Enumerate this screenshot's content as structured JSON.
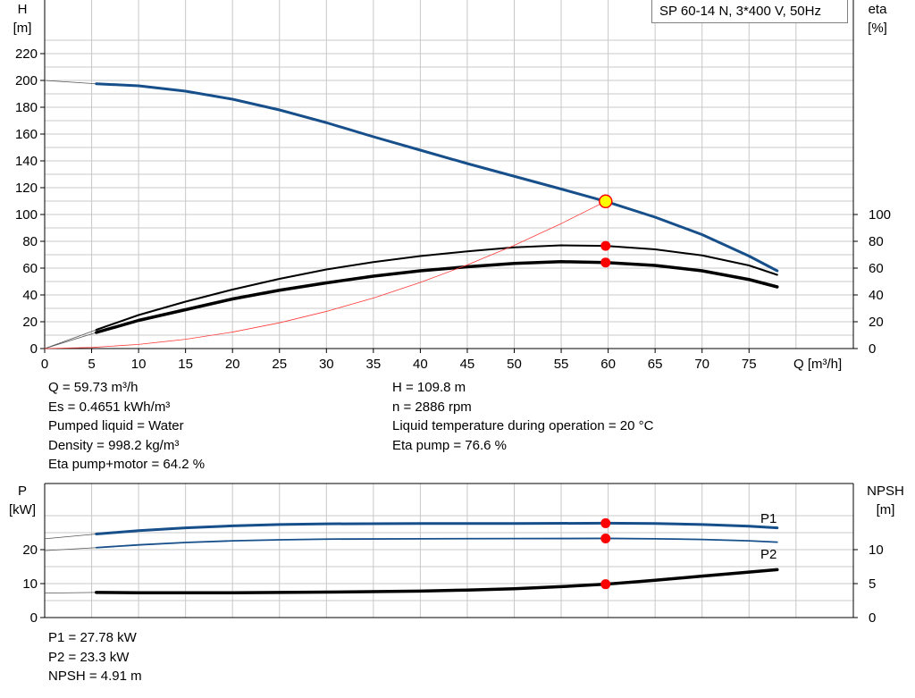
{
  "title": "SP 60-14 N, 3*400 V, 50Hz",
  "colors": {
    "curve_blue": "#174f8b",
    "op_point": "#ff0000",
    "op_point_highlight": "#ffff00",
    "system_curve": "#ff3a3a",
    "grid": "#c8c8c8"
  },
  "chart_data": [
    {
      "type": "line",
      "ylabel_left": [
        "H",
        "[m]"
      ],
      "ylabel_right": [
        "eta",
        "[%]"
      ],
      "xlabel": "Q [m³/h]",
      "xlim": [
        0,
        80
      ],
      "ylim": [
        0,
        230
      ],
      "x_ticks": [
        0,
        5,
        10,
        15,
        20,
        25,
        30,
        35,
        40,
        45,
        50,
        55,
        60,
        65,
        70,
        75
      ],
      "y_ticks_left": [
        0,
        20,
        40,
        60,
        80,
        100,
        120,
        140,
        160,
        180,
        200,
        220
      ],
      "y_ticks_right": [
        0,
        20,
        40,
        60,
        80,
        100
      ],
      "grid": true,
      "series": [
        {
          "key": "H",
          "axis": "left",
          "color": "#174f8b",
          "width": 3,
          "ext": [
            [
              0,
              200
            ],
            [
              5.5,
              197.5
            ]
          ],
          "values": [
            [
              5.5,
              197.5
            ],
            [
              10,
              196
            ],
            [
              15,
              192
            ],
            [
              20,
              186
            ],
            [
              25,
              178
            ],
            [
              30,
              168.5
            ],
            [
              35,
              158
            ],
            [
              40,
              148
            ],
            [
              45,
              138
            ],
            [
              50,
              128.5
            ],
            [
              55,
              119
            ],
            [
              59.73,
              109.8
            ],
            [
              65,
              98
            ],
            [
              70,
              85
            ],
            [
              75,
              69
            ],
            [
              78,
              58
            ]
          ]
        },
        {
          "key": "eta_pump",
          "axis": "right",
          "color": "#000000",
          "width": 2,
          "ext": [
            [
              0,
              0
            ],
            [
              5.5,
              14
            ]
          ],
          "values": [
            [
              5.5,
              14
            ],
            [
              10,
              25
            ],
            [
              15,
              35
            ],
            [
              20,
              44
            ],
            [
              25,
              52
            ],
            [
              30,
              59
            ],
            [
              35,
              64.5
            ],
            [
              40,
              69
            ],
            [
              45,
              72.5
            ],
            [
              50,
              75.5
            ],
            [
              55,
              77
            ],
            [
              59.73,
              76.6
            ],
            [
              65,
              74
            ],
            [
              70,
              69.5
            ],
            [
              75,
              62
            ],
            [
              78,
              55
            ]
          ]
        },
        {
          "key": "eta_total",
          "axis": "right",
          "color": "#000000",
          "width": 3.5,
          "ext": [
            [
              0,
              0
            ],
            [
              5.5,
              12
            ]
          ],
          "values": [
            [
              5.5,
              12
            ],
            [
              10,
              21
            ],
            [
              15,
              29
            ],
            [
              20,
              37
            ],
            [
              25,
              43.5
            ],
            [
              30,
              49
            ],
            [
              35,
              54
            ],
            [
              40,
              58
            ],
            [
              45,
              61
            ],
            [
              50,
              63.5
            ],
            [
              55,
              64.8
            ],
            [
              59.73,
              64.2
            ],
            [
              65,
              62
            ],
            [
              70,
              58
            ],
            [
              75,
              51.5
            ],
            [
              78,
              46
            ]
          ]
        },
        {
          "key": "system",
          "axis": "left",
          "color": "#ff3a3a",
          "width": 0.8,
          "values": [
            [
              0,
              0
            ],
            [
              5,
              0.8
            ],
            [
              10,
              3.1
            ],
            [
              15,
              6.9
            ],
            [
              20,
              12.3
            ],
            [
              25,
              19.2
            ],
            [
              30,
              27.7
            ],
            [
              35,
              37.7
            ],
            [
              40,
              49.3
            ],
            [
              45,
              62.4
            ],
            [
              50,
              77
            ],
            [
              55,
              93.2
            ],
            [
              59.73,
              109.8
            ]
          ]
        }
      ],
      "op_points": [
        {
          "axis": "left",
          "x": 59.73,
          "y": 109.8,
          "style": "highlight"
        },
        {
          "axis": "right",
          "x": 59.73,
          "y": 76.6
        },
        {
          "axis": "right",
          "x": 59.73,
          "y": 64.2
        }
      ]
    },
    {
      "type": "line",
      "ylabel_left": [
        "P",
        "[kW]"
      ],
      "ylabel_right": [
        "NPSH",
        "[m]"
      ],
      "xlim": [
        0,
        80
      ],
      "ylim": [
        0,
        30
      ],
      "y_ticks_left": [
        0,
        10,
        20
      ],
      "y_ticks_right": [
        0,
        5,
        10
      ],
      "grid": true,
      "series": [
        {
          "key": "P1",
          "name": "P1",
          "axis": "left",
          "color": "#174f8b",
          "width": 3,
          "ext": [
            [
              0,
              23.2
            ],
            [
              5.5,
              24.6
            ]
          ],
          "values": [
            [
              5.5,
              24.6
            ],
            [
              10,
              25.6
            ],
            [
              15,
              26.4
            ],
            [
              20,
              27
            ],
            [
              25,
              27.4
            ],
            [
              30,
              27.6
            ],
            [
              40,
              27.7
            ],
            [
              50,
              27.7
            ],
            [
              59.73,
              27.78
            ],
            [
              65,
              27.7
            ],
            [
              70,
              27.4
            ],
            [
              75,
              26.9
            ],
            [
              78,
              26.4
            ]
          ]
        },
        {
          "key": "P2",
          "name": "P2",
          "axis": "left",
          "color": "#174f8b",
          "width": 1.8,
          "ext": [
            [
              0,
              19.7
            ],
            [
              5.5,
              20.6
            ]
          ],
          "values": [
            [
              5.5,
              20.6
            ],
            [
              10,
              21.4
            ],
            [
              15,
              22.1
            ],
            [
              20,
              22.6
            ],
            [
              25,
              22.9
            ],
            [
              30,
              23.1
            ],
            [
              40,
              23.2
            ],
            [
              50,
              23.25
            ],
            [
              59.73,
              23.3
            ],
            [
              65,
              23.2
            ],
            [
              70,
              23
            ],
            [
              75,
              22.6
            ],
            [
              78,
              22.2
            ]
          ]
        },
        {
          "key": "NPSH",
          "axis": "right",
          "color": "#000000",
          "width": 3.5,
          "ext": [
            [
              0,
              3.6
            ],
            [
              5.5,
              3.7
            ]
          ],
          "values": [
            [
              5.5,
              3.7
            ],
            [
              10,
              3.65
            ],
            [
              20,
              3.65
            ],
            [
              30,
              3.75
            ],
            [
              40,
              3.9
            ],
            [
              45,
              4.05
            ],
            [
              50,
              4.25
            ],
            [
              55,
              4.55
            ],
            [
              59.73,
              4.91
            ],
            [
              65,
              5.5
            ],
            [
              70,
              6.1
            ],
            [
              75,
              6.7
            ],
            [
              78,
              7.05
            ]
          ]
        }
      ],
      "op_points": [
        {
          "axis": "left",
          "x": 59.73,
          "y": 27.78
        },
        {
          "axis": "left",
          "x": 59.73,
          "y": 23.3
        },
        {
          "axis": "right",
          "x": 59.73,
          "y": 4.91
        }
      ]
    }
  ],
  "info_top_left": [
    "Q = 59.73 m³/h",
    "Es = 0.4651 kWh/m³",
    "Pumped liquid = Water",
    "Density = 998.2 kg/m³",
    "Eta pump+motor = 64.2 %"
  ],
  "info_top_right": [
    "H = 109.8 m",
    "n = 2886 rpm",
    "Liquid temperature during operation = 20 °C",
    "Eta pump = 76.6 %"
  ],
  "info_bottom": [
    "P1 = 27.78 kW",
    "P2 = 23.3 kW",
    "NPSH = 4.91 m"
  ]
}
